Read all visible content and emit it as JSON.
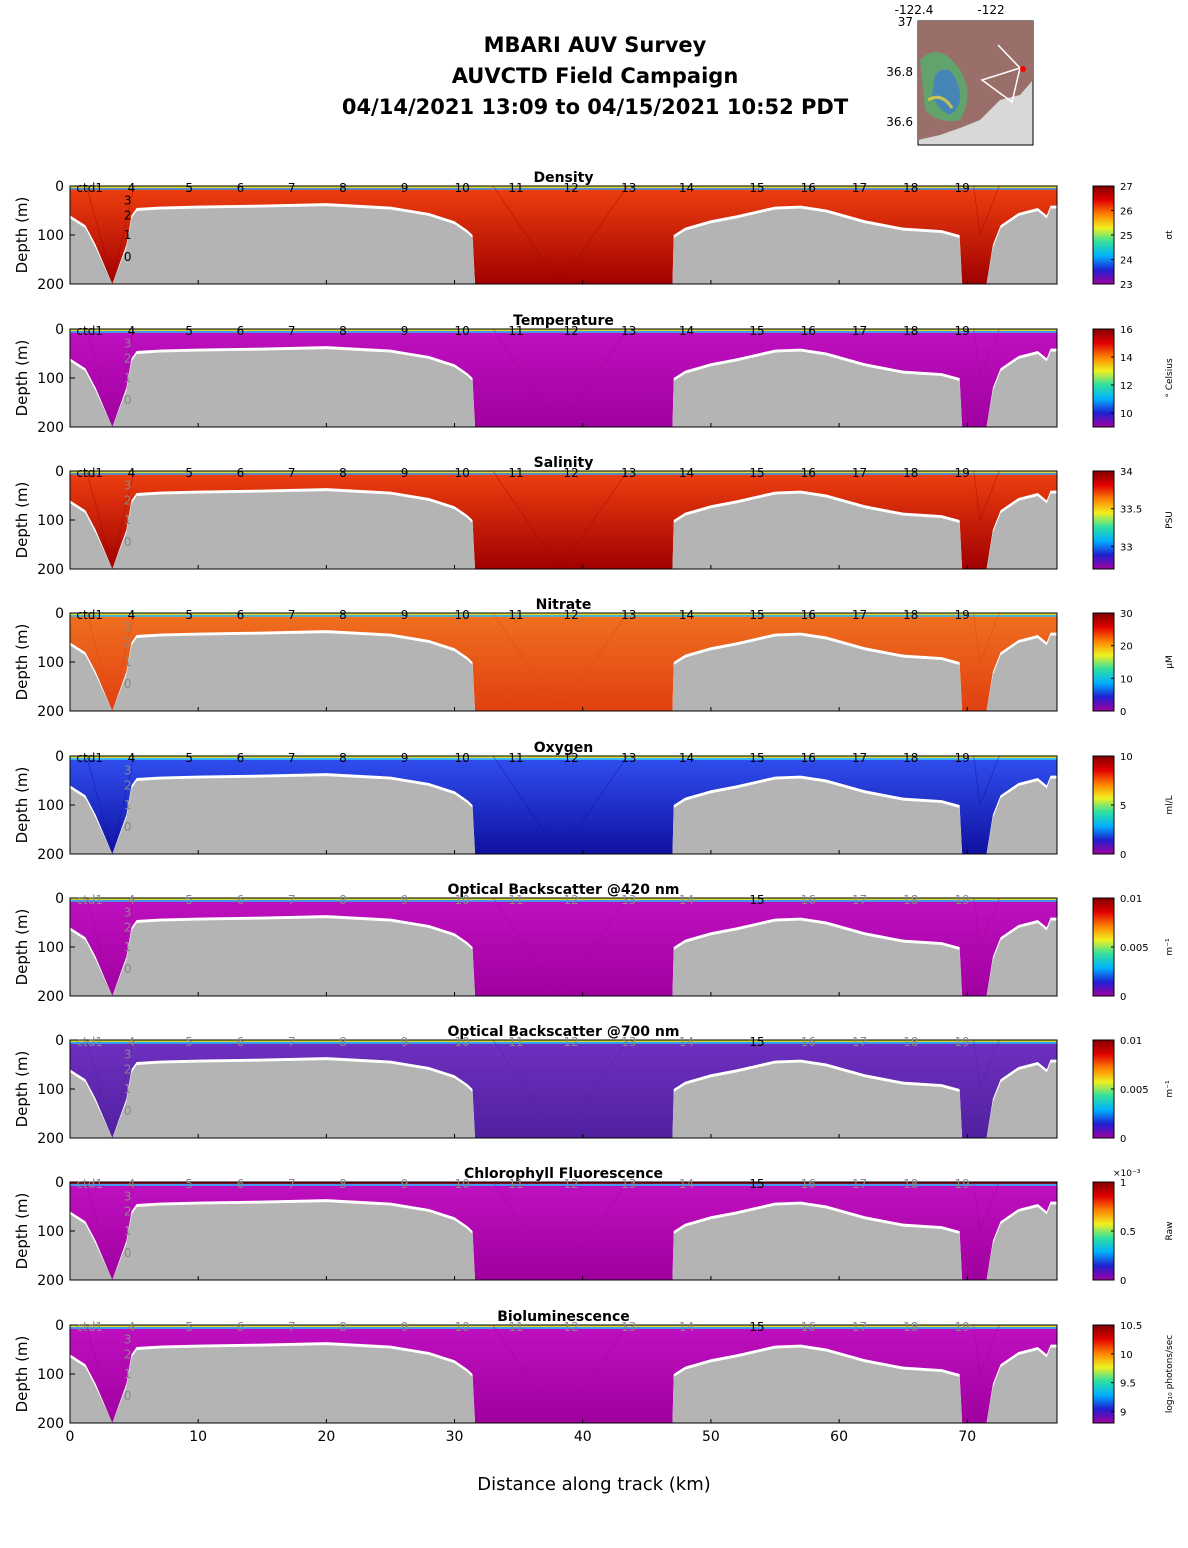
{
  "header": {
    "line1": "MBARI AUV Survey",
    "line2": "AUVCTD Field Campaign",
    "line3": "04/14/2021 13:09  to 04/15/2021 10:52 PDT"
  },
  "inset_map": {
    "lon_ticks": [
      "-122.4",
      "-122"
    ],
    "lat_ticks": [
      "37",
      "36.8",
      "36.6"
    ],
    "colors": {
      "land": "#9a6f6a",
      "sea": "#d8d8d8",
      "track": "#ffffff",
      "marker": "#ff0000"
    }
  },
  "axes": {
    "xlabel": "Distance along track (km)",
    "ylabel": "Depth (m)",
    "xlim": [
      0,
      77
    ],
    "ylim": [
      200,
      0
    ],
    "x_ticks": [
      0,
      10,
      20,
      30,
      40,
      50,
      60,
      70
    ],
    "y_ticks": [
      0,
      100,
      200
    ]
  },
  "profile_labels": [
    {
      "label": "ctd1",
      "km": 0.5
    },
    {
      "label": "4",
      "km": 4.5
    },
    {
      "label": "5",
      "km": 9.0
    },
    {
      "label": "6",
      "km": 13.0
    },
    {
      "label": "7",
      "km": 17.0
    },
    {
      "label": "8",
      "km": 21.0
    },
    {
      "label": "9",
      "km": 25.8
    },
    {
      "label": "10",
      "km": 30.0
    },
    {
      "label": "11",
      "km": 34.2
    },
    {
      "label": "12",
      "km": 38.5
    },
    {
      "label": "13",
      "km": 43.0
    },
    {
      "label": "14",
      "km": 47.5
    },
    {
      "label": "15",
      "km": 53.0
    },
    {
      "label": "16",
      "km": 57.0
    },
    {
      "label": "17",
      "km": 61.0
    },
    {
      "label": "18",
      "km": 65.0
    },
    {
      "label": "19",
      "km": 69.0
    }
  ],
  "deep_markers": [
    {
      "label": "3",
      "depth": 30
    },
    {
      "label": "2",
      "depth": 60
    },
    {
      "label": "1",
      "depth": 100
    },
    {
      "label": "0",
      "depth": 145
    }
  ],
  "chart_data": [
    {
      "type": "heatmap",
      "title": "Density",
      "cbar_label": "σt",
      "cbar_ticks": [
        "23",
        "24",
        "25",
        "26",
        "27"
      ],
      "range": [
        23,
        27
      ],
      "dominant": "red"
    },
    {
      "type": "heatmap",
      "title": "Temperature",
      "cbar_label": "° Celsius",
      "cbar_ticks": [
        "10",
        "12",
        "14",
        "16"
      ],
      "range": [
        9,
        16
      ],
      "dominant": "magenta"
    },
    {
      "type": "heatmap",
      "title": "Salinity",
      "cbar_label": "PSU",
      "cbar_ticks": [
        "33",
        "33.5",
        "34"
      ],
      "range": [
        32.7,
        34
      ],
      "dominant": "red"
    },
    {
      "type": "heatmap",
      "title": "Nitrate",
      "cbar_label": "μM",
      "cbar_ticks": [
        "0",
        "10",
        "20",
        "30"
      ],
      "range": [
        0,
        30
      ],
      "dominant": "orange"
    },
    {
      "type": "heatmap",
      "title": "Oxygen",
      "cbar_label": "ml/L",
      "cbar_ticks": [
        "0",
        "5",
        "10"
      ],
      "range": [
        0,
        10
      ],
      "dominant": "blue"
    },
    {
      "type": "heatmap",
      "title": "Optical Backscatter @420 nm",
      "cbar_label": "m⁻¹",
      "cbar_ticks": [
        "0",
        "0.005",
        "0.01"
      ],
      "range": [
        0,
        0.01
      ],
      "dominant": "magenta"
    },
    {
      "type": "heatmap",
      "title": "Optical Backscatter @700 nm",
      "cbar_label": "m⁻¹",
      "cbar_ticks": [
        "0",
        "0.005",
        "0.01"
      ],
      "range": [
        0,
        0.01
      ],
      "dominant": "purple"
    },
    {
      "type": "heatmap",
      "title": "Chlorophyll Fluorescence",
      "cbar_label": "Raw",
      "cbar_ticks": [
        "0",
        "0.5",
        "1"
      ],
      "cbar_exponent": "×10⁻³",
      "range": [
        0,
        0.001
      ],
      "dominant": "magenta"
    },
    {
      "type": "heatmap",
      "title": "Bioluminescence",
      "cbar_label": "log₁₀ photons/sec",
      "cbar_ticks": [
        "9",
        "9.5",
        "10",
        "10.5"
      ],
      "range": [
        8.8,
        10.5
      ],
      "dominant": "magenta"
    }
  ]
}
